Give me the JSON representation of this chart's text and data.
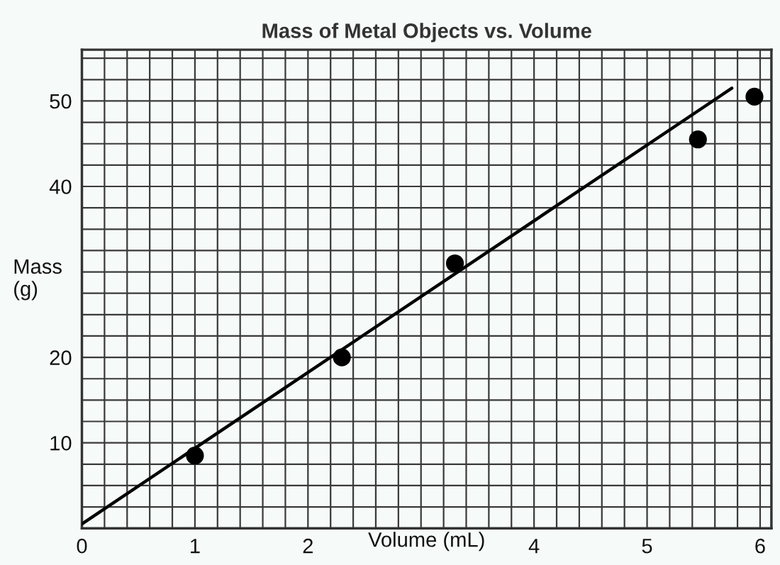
{
  "chart_data": {
    "type": "scatter",
    "title": "Mass of Metal Objects vs. Volume",
    "xlabel": "Volume (mL)",
    "ylabel": "Mass\n(g)",
    "series": [
      {
        "color": "#000000",
        "marker": "circle",
        "x": [
          1.0,
          2.3,
          3.3,
          5.45,
          5.95
        ],
        "values": [
          8.5,
          20,
          31,
          45.5,
          50.5
        ]
      },
      {
        "type": "line",
        "color": "#000000",
        "marker": "none",
        "line_style": "solid",
        "x": [
          0,
          5.75
        ],
        "values": [
          0.5,
          51.5
        ]
      }
    ],
    "xlim": [
      0,
      6.1
    ],
    "ylim": [
      0,
      56
    ],
    "xticks": [
      0,
      {
        "value": 0.2,
        "label": null
      },
      {
        "value": 0.4,
        "label": null
      },
      {
        "value": 0.6,
        "label": null
      },
      {
        "value": 0.8,
        "label": null
      },
      1,
      {
        "value": 1.2,
        "label": null
      },
      {
        "value": 1.4,
        "label": null
      },
      {
        "value": 1.6,
        "label": null
      },
      {
        "value": 1.8,
        "label": null
      },
      2,
      {
        "value": 2.2,
        "label": null
      },
      {
        "value": 2.4,
        "label": null
      },
      {
        "value": 2.6,
        "label": null
      },
      {
        "value": 2.8,
        "label": null
      },
      {
        "value": 3,
        "label": null
      },
      {
        "value": 3.2,
        "label": null
      },
      {
        "value": 3.4,
        "label": null
      },
      {
        "value": 3.6,
        "label": null
      },
      {
        "value": 3.8,
        "label": null
      },
      4,
      {
        "value": 4.2,
        "label": null
      },
      {
        "value": 4.4,
        "label": null
      },
      {
        "value": 4.6,
        "label": null
      },
      {
        "value": 4.8,
        "label": null
      },
      5,
      {
        "value": 5.2,
        "label": null
      },
      {
        "value": 5.4,
        "label": null
      },
      {
        "value": 5.6,
        "label": null
      },
      {
        "value": 5.8,
        "label": null
      },
      6
    ],
    "yticks": [
      {
        "value": 0,
        "label": null
      },
      {
        "value": 2.5,
        "label": null
      },
      {
        "value": 5,
        "label": null
      },
      {
        "value": 7.5,
        "label": null
      },
      10,
      {
        "value": 12.5,
        "label": null
      },
      {
        "value": 15,
        "label": null
      },
      {
        "value": 17.5,
        "label": null
      },
      20,
      {
        "value": 22.5,
        "label": null
      },
      {
        "value": 25,
        "label": null
      },
      {
        "value": 27.5,
        "label": null
      },
      {
        "value": 30,
        "label": null
      },
      {
        "value": 32.5,
        "label": null
      },
      {
        "value": 35,
        "label": null
      },
      {
        "value": 37.5,
        "label": null
      },
      40,
      {
        "value": 42.5,
        "label": null
      },
      {
        "value": 45,
        "label": null
      },
      {
        "value": 47.5,
        "label": null
      },
      50,
      {
        "value": 52.5,
        "label": null
      },
      {
        "value": 55,
        "label": null
      }
    ],
    "grid": true,
    "legend": false
  }
}
